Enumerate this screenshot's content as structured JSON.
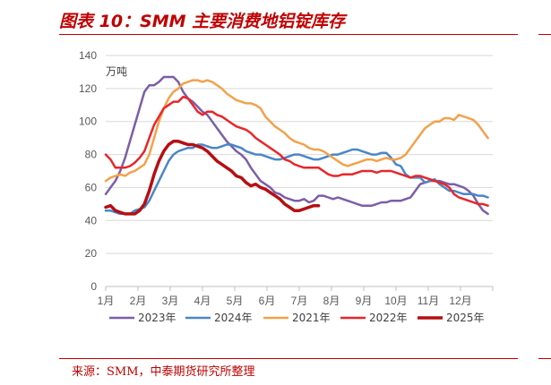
{
  "title": "图表 10：SMM 主要消费地铝锭库存",
  "source": "来源：SMM，中泰期货研究所整理",
  "chart_data": {
    "type": "line",
    "title": "图表 10：SMM 主要消费地铝锭库存",
    "unit": "万吨",
    "categories": [
      "1月",
      "2月",
      "3月",
      "4月",
      "5月",
      "6月",
      "7月",
      "8月",
      "9月",
      "10月",
      "11月",
      "12月"
    ],
    "ylim": [
      0,
      140
    ],
    "yticks": [
      0,
      20,
      40,
      60,
      80,
      100,
      120,
      140
    ],
    "grid": true,
    "legend_position": "bottom",
    "series": [
      {
        "name": "2023年",
        "color": "#7b5ea7",
        "width": 2.5,
        "x": [
          0,
          0.15,
          0.3,
          0.45,
          0.6,
          0.75,
          0.9,
          1.05,
          1.2,
          1.35,
          1.5,
          1.65,
          1.8,
          1.95,
          2.1,
          2.25,
          2.4,
          2.55,
          2.7,
          2.85,
          3.0,
          3.15,
          3.3,
          3.45,
          3.6,
          3.75,
          3.9,
          4.05,
          4.2,
          4.35,
          4.5,
          4.65,
          4.8,
          4.95,
          5.1,
          5.25,
          5.4,
          5.55,
          5.7,
          5.85,
          6.0,
          6.15,
          6.3,
          6.45,
          6.6,
          6.75,
          6.9,
          7.05,
          7.2,
          7.35,
          7.5,
          7.65,
          7.8,
          7.95,
          8.1,
          8.25,
          8.4,
          8.55,
          8.7,
          8.85,
          9.0,
          9.15,
          9.3,
          9.45,
          9.6,
          9.75,
          9.9,
          10.05,
          10.2,
          10.35,
          10.5,
          10.65,
          10.8,
          10.95,
          11.1,
          11.25,
          11.4,
          11.55,
          11.7,
          11.85
        ],
        "y": [
          56,
          60,
          64,
          70,
          78,
          88,
          98,
          108,
          118,
          122,
          122,
          124,
          127,
          127,
          127,
          124,
          118,
          114,
          112,
          109,
          106,
          104,
          100,
          96,
          92,
          88,
          85,
          82,
          80,
          77,
          72,
          68,
          64,
          62,
          60,
          57,
          56,
          54,
          53,
          52,
          52,
          53,
          51,
          52,
          55,
          55,
          54,
          53,
          54,
          53,
          52,
          51,
          50,
          49,
          49,
          49,
          50,
          51,
          51,
          52,
          52,
          52,
          53,
          54,
          58,
          62,
          63,
          64,
          64,
          64,
          63,
          62,
          62,
          61,
          60,
          58,
          55,
          50,
          46,
          44
        ]
      },
      {
        "name": "2024年",
        "color": "#4a86c8",
        "width": 2.5,
        "x": [
          0,
          0.15,
          0.3,
          0.45,
          0.6,
          0.75,
          0.9,
          1.05,
          1.2,
          1.35,
          1.5,
          1.65,
          1.8,
          1.95,
          2.1,
          2.25,
          2.4,
          2.55,
          2.7,
          2.85,
          3.0,
          3.15,
          3.3,
          3.45,
          3.6,
          3.75,
          3.9,
          4.05,
          4.2,
          4.35,
          4.5,
          4.65,
          4.8,
          4.95,
          5.1,
          5.25,
          5.4,
          5.55,
          5.7,
          5.85,
          6.0,
          6.15,
          6.3,
          6.45,
          6.6,
          6.75,
          6.9,
          7.05,
          7.2,
          7.35,
          7.5,
          7.65,
          7.8,
          7.95,
          8.1,
          8.25,
          8.4,
          8.55,
          8.7,
          8.85,
          9.0,
          9.15,
          9.3,
          9.45,
          9.6,
          9.75,
          9.9,
          10.05,
          10.2,
          10.35,
          10.5,
          10.65,
          10.8,
          10.95,
          11.1,
          11.25,
          11.4,
          11.55,
          11.7,
          11.85
        ],
        "y": [
          46,
          46,
          45,
          44,
          44,
          44,
          46,
          47,
          48,
          52,
          58,
          64,
          70,
          76,
          80,
          82,
          83,
          84,
          84,
          86,
          86,
          85,
          84,
          84,
          85,
          86,
          86,
          85,
          84,
          82,
          81,
          80,
          80,
          79,
          78,
          77,
          77,
          78,
          79,
          80,
          80,
          79,
          78,
          77,
          77,
          78,
          79,
          80,
          80,
          81,
          82,
          83,
          83,
          82,
          81,
          80,
          80,
          81,
          81,
          78,
          74,
          73,
          68,
          66,
          66,
          66,
          63,
          64,
          65,
          62,
          60,
          58,
          58,
          57,
          56,
          56,
          56,
          55,
          55,
          54
        ]
      },
      {
        "name": "2021年",
        "color": "#f4a14a",
        "width": 2.5,
        "x": [
          0,
          0.15,
          0.3,
          0.45,
          0.6,
          0.75,
          0.9,
          1.05,
          1.2,
          1.35,
          1.5,
          1.65,
          1.8,
          1.95,
          2.1,
          2.25,
          2.4,
          2.55,
          2.7,
          2.85,
          3.0,
          3.15,
          3.3,
          3.45,
          3.6,
          3.75,
          3.9,
          4.05,
          4.2,
          4.35,
          4.5,
          4.65,
          4.8,
          4.95,
          5.1,
          5.25,
          5.4,
          5.55,
          5.7,
          5.85,
          6.0,
          6.15,
          6.3,
          6.45,
          6.6,
          6.75,
          6.9,
          7.05,
          7.2,
          7.35,
          7.5,
          7.65,
          7.8,
          7.95,
          8.1,
          8.25,
          8.4,
          8.55,
          8.7,
          8.85,
          9.0,
          9.15,
          9.3,
          9.45,
          9.6,
          9.75,
          9.9,
          10.05,
          10.2,
          10.35,
          10.5,
          10.65,
          10.8,
          10.95,
          11.1,
          11.25,
          11.4,
          11.55,
          11.7,
          11.85
        ],
        "y": [
          64,
          66,
          67,
          68,
          67,
          69,
          70,
          72,
          74,
          80,
          90,
          100,
          108,
          114,
          118,
          120,
          123,
          124,
          125,
          125,
          124,
          125,
          124,
          122,
          120,
          117,
          115,
          113,
          112,
          111,
          111,
          110,
          108,
          103,
          100,
          97,
          95,
          93,
          90,
          88,
          87,
          86,
          84,
          83,
          83,
          82,
          80,
          78,
          76,
          74,
          73,
          74,
          75,
          76,
          77,
          77,
          76,
          77,
          78,
          77,
          77,
          78,
          80,
          84,
          88,
          92,
          96,
          98,
          100,
          100,
          102,
          102,
          101,
          104,
          103,
          102,
          101,
          98,
          94,
          90
        ]
      },
      {
        "name": "2022年",
        "color": "#e8262a",
        "width": 2.5,
        "x": [
          0,
          0.15,
          0.3,
          0.45,
          0.6,
          0.75,
          0.9,
          1.05,
          1.2,
          1.35,
          1.5,
          1.65,
          1.8,
          1.95,
          2.1,
          2.25,
          2.4,
          2.55,
          2.7,
          2.85,
          3.0,
          3.15,
          3.3,
          3.45,
          3.6,
          3.75,
          3.9,
          4.05,
          4.2,
          4.35,
          4.5,
          4.65,
          4.8,
          4.95,
          5.1,
          5.25,
          5.4,
          5.55,
          5.7,
          5.85,
          6.0,
          6.15,
          6.3,
          6.45,
          6.6,
          6.75,
          6.9,
          7.05,
          7.2,
          7.35,
          7.5,
          7.65,
          7.8,
          7.95,
          8.1,
          8.25,
          8.4,
          8.55,
          8.7,
          8.85,
          9.0,
          9.15,
          9.3,
          9.45,
          9.6,
          9.75,
          9.9,
          10.05,
          10.2,
          10.35,
          10.5,
          10.65,
          10.8,
          10.95,
          11.1,
          11.25,
          11.4,
          11.55,
          11.7,
          11.85
        ],
        "y": [
          80,
          77,
          72,
          72,
          72,
          73,
          75,
          78,
          82,
          90,
          98,
          103,
          108,
          110,
          112,
          112,
          115,
          114,
          110,
          106,
          104,
          106,
          106,
          104,
          103,
          101,
          99,
          97,
          96,
          95,
          93,
          90,
          88,
          86,
          84,
          82,
          80,
          77,
          76,
          74,
          73,
          72,
          72,
          72,
          72,
          70,
          68,
          67,
          67,
          68,
          68,
          68,
          69,
          70,
          70,
          70,
          69,
          70,
          70,
          70,
          69,
          68,
          67,
          66,
          67,
          67,
          66,
          65,
          64,
          63,
          62,
          60,
          56,
          54,
          53,
          52,
          51,
          50,
          50,
          49
        ]
      },
      {
        "name": "2025年",
        "color": "#b50f12",
        "width": 3.5,
        "x": [
          0,
          0.15,
          0.3,
          0.45,
          0.6,
          0.75,
          0.9,
          1.05,
          1.2,
          1.35,
          1.5,
          1.65,
          1.8,
          1.95,
          2.1,
          2.25,
          2.4,
          2.55,
          2.7,
          2.85,
          3.0,
          3.15,
          3.3,
          3.45,
          3.6,
          3.75,
          3.9,
          4.05,
          4.2,
          4.35,
          4.5,
          4.65,
          4.8,
          4.95,
          5.1,
          5.25,
          5.4,
          5.55,
          5.7,
          5.85,
          6.0,
          6.15,
          6.3,
          6.45,
          6.6
        ],
        "y": [
          48,
          49,
          46,
          45,
          44,
          44,
          44,
          46,
          50,
          58,
          68,
          76,
          82,
          86,
          88,
          88,
          87,
          86,
          86,
          85,
          84,
          82,
          79,
          76,
          74,
          72,
          70,
          67,
          66,
          63,
          61,
          62,
          60,
          59,
          57,
          55,
          53,
          50,
          48,
          46,
          46,
          47,
          48,
          49,
          49
        ]
      }
    ]
  }
}
